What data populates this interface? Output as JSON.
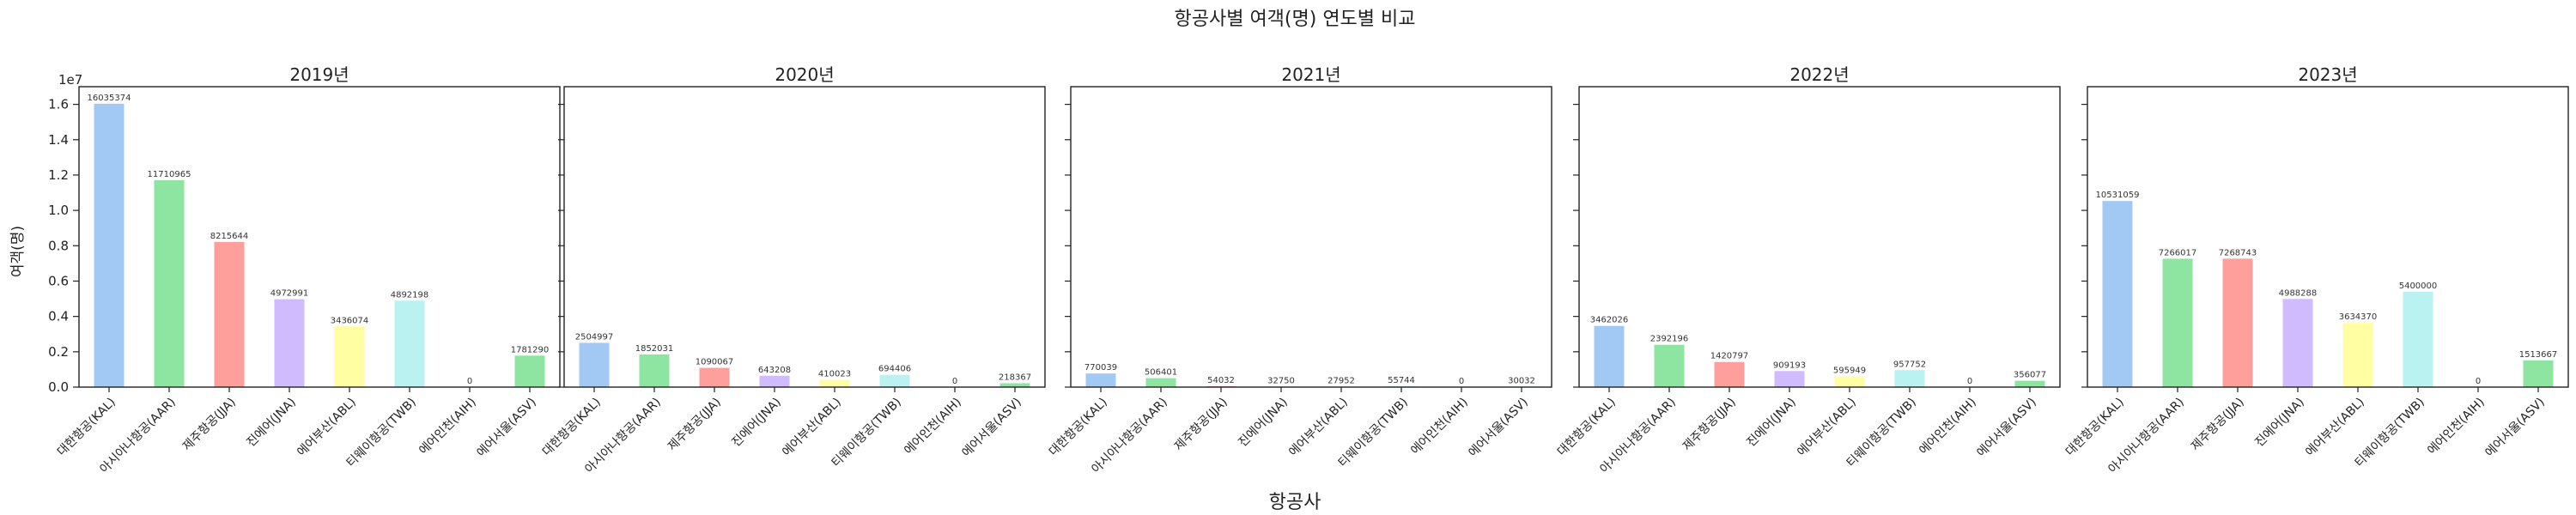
{
  "figure": {
    "suptitle": "항공사별 여객(명) 연도별 비교",
    "xlabel": "항공사",
    "ylabel": "여객(명)",
    "exponent_label": "1e7"
  },
  "colors": [
    "#a1c9f4",
    "#8de5a1",
    "#ff9f9b",
    "#d0bbff",
    "#fffea3",
    "#b9f2f0",
    "#debb9b",
    "#8de5a1"
  ],
  "chart_data": [
    {
      "type": "bar",
      "title": "2019년",
      "categories": [
        "대한항공(KAL)",
        "아시아나항공(AAR)",
        "제주항공(JJA)",
        "진에어(JNA)",
        "에어부산(ABL)",
        "티웨이항공(TWB)",
        "에어인천(AIH)",
        "에어서울(ASV)"
      ],
      "values": [
        16035374,
        11710965,
        8215644,
        4972991,
        3436074,
        4892198,
        0,
        1781290
      ],
      "value_labels": [
        "16035374",
        "11710965",
        "8215644",
        "4972991",
        "3436074",
        "4892198",
        "0",
        "1781290"
      ],
      "ylim": [
        0,
        17000000
      ],
      "yticks": [
        "0.0",
        "0.2",
        "0.4",
        "0.6",
        "0.8",
        "1.0",
        "1.2",
        "1.4",
        "1.6"
      ],
      "grid": false
    },
    {
      "type": "bar",
      "title": "2020년",
      "categories": [
        "대한항공(KAL)",
        "아시아나항공(AAR)",
        "제주항공(JJA)",
        "진에어(JNA)",
        "에어부산(ABL)",
        "티웨이항공(TWB)",
        "에어인천(AIH)",
        "에어서울(ASV)"
      ],
      "values": [
        2504997,
        1852031,
        1090067,
        643208,
        410023,
        694406,
        0,
        218367
      ],
      "value_labels": [
        "2504997",
        "1852031",
        "1090067",
        "643208",
        "410023",
        "694406",
        "0",
        "218367"
      ],
      "ylim": [
        0,
        17000000
      ],
      "grid": false
    },
    {
      "type": "bar",
      "title": "2021년",
      "categories": [
        "대한항공(KAL)",
        "아시아나항공(AAR)",
        "제주항공(JJA)",
        "진에어(JNA)",
        "에어부산(ABL)",
        "티웨이항공(TWB)",
        "에어인천(AIH)",
        "에어서울(ASV)"
      ],
      "values": [
        770039,
        506401,
        54032,
        32750,
        27952,
        55744,
        0,
        30032
      ],
      "value_labels": [
        "770039",
        "506401",
        "54032",
        "32750",
        "27952",
        "55744",
        "0",
        "30032"
      ],
      "ylim": [
        0,
        17000000
      ],
      "grid": false
    },
    {
      "type": "bar",
      "title": "2022년",
      "categories": [
        "대한항공(KAL)",
        "아시아나항공(AAR)",
        "제주항공(JJA)",
        "진에어(JNA)",
        "에어부산(ABL)",
        "티웨이항공(TWB)",
        "에어인천(AIH)",
        "에어서울(ASV)"
      ],
      "values": [
        3462026,
        2392196,
        1420797,
        909193,
        595949,
        957752,
        0,
        356077
      ],
      "value_labels": [
        "3462026",
        "2392196",
        "1420797",
        "909193",
        "595949",
        "957752",
        "0",
        "356077"
      ],
      "ylim": [
        0,
        17000000
      ],
      "grid": false
    },
    {
      "type": "bar",
      "title": "2023년",
      "categories": [
        "대한항공(KAL)",
        "아시아나항공(AAR)",
        "제주항공(JJA)",
        "진에어(JNA)",
        "에어부산(ABL)",
        "티웨이항공(TWB)",
        "에어인천(AIH)",
        "에어서울(ASV)"
      ],
      "values": [
        10531059,
        7266017,
        7268743,
        4988288,
        3634370,
        5400000,
        0,
        1513667
      ],
      "value_labels": [
        "10531059",
        "7266017",
        "7268743",
        "4988288",
        "3634370",
        "5400000",
        "0",
        "1513667"
      ],
      "ylim": [
        0,
        17000000
      ],
      "grid": false
    }
  ]
}
